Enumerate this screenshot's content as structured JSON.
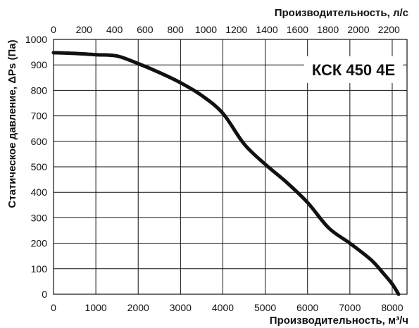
{
  "chart_data": {
    "type": "line",
    "title": "",
    "xlabel": "Производительность, м³/ч",
    "x2label": "Производительность, л/с",
    "ylabel": "Статическое давление, ΔPs (Па)",
    "annotation": "КСК 450 4Е",
    "xlim": [
      0,
      8350
    ],
    "ylim": [
      0,
      1000
    ],
    "x2lim": [
      0,
      2319
    ],
    "x_ticks": [
      0,
      1000,
      2000,
      3000,
      4000,
      5000,
      6000,
      7000,
      8000
    ],
    "x2_ticks": [
      0,
      200,
      400,
      600,
      800,
      1000,
      1200,
      1400,
      1600,
      1800,
      2000,
      2200
    ],
    "y_ticks": [
      0,
      100,
      200,
      300,
      400,
      500,
      600,
      700,
      800,
      900,
      1000
    ],
    "grid": true,
    "series": [
      {
        "x": [
          0,
          500,
          1000,
          1500,
          2000,
          2500,
          3000,
          3500,
          4000,
          4500,
          5000,
          5500,
          6000,
          6500,
          7000,
          7500,
          7800,
          8000,
          8150
        ],
        "values": [
          948,
          945,
          940,
          935,
          905,
          870,
          830,
          780,
          710,
          590,
          510,
          440,
          360,
          260,
          200,
          135,
          80,
          40,
          0
        ]
      }
    ],
    "colors": {
      "line": "#111111",
      "grid": "#111111"
    }
  }
}
